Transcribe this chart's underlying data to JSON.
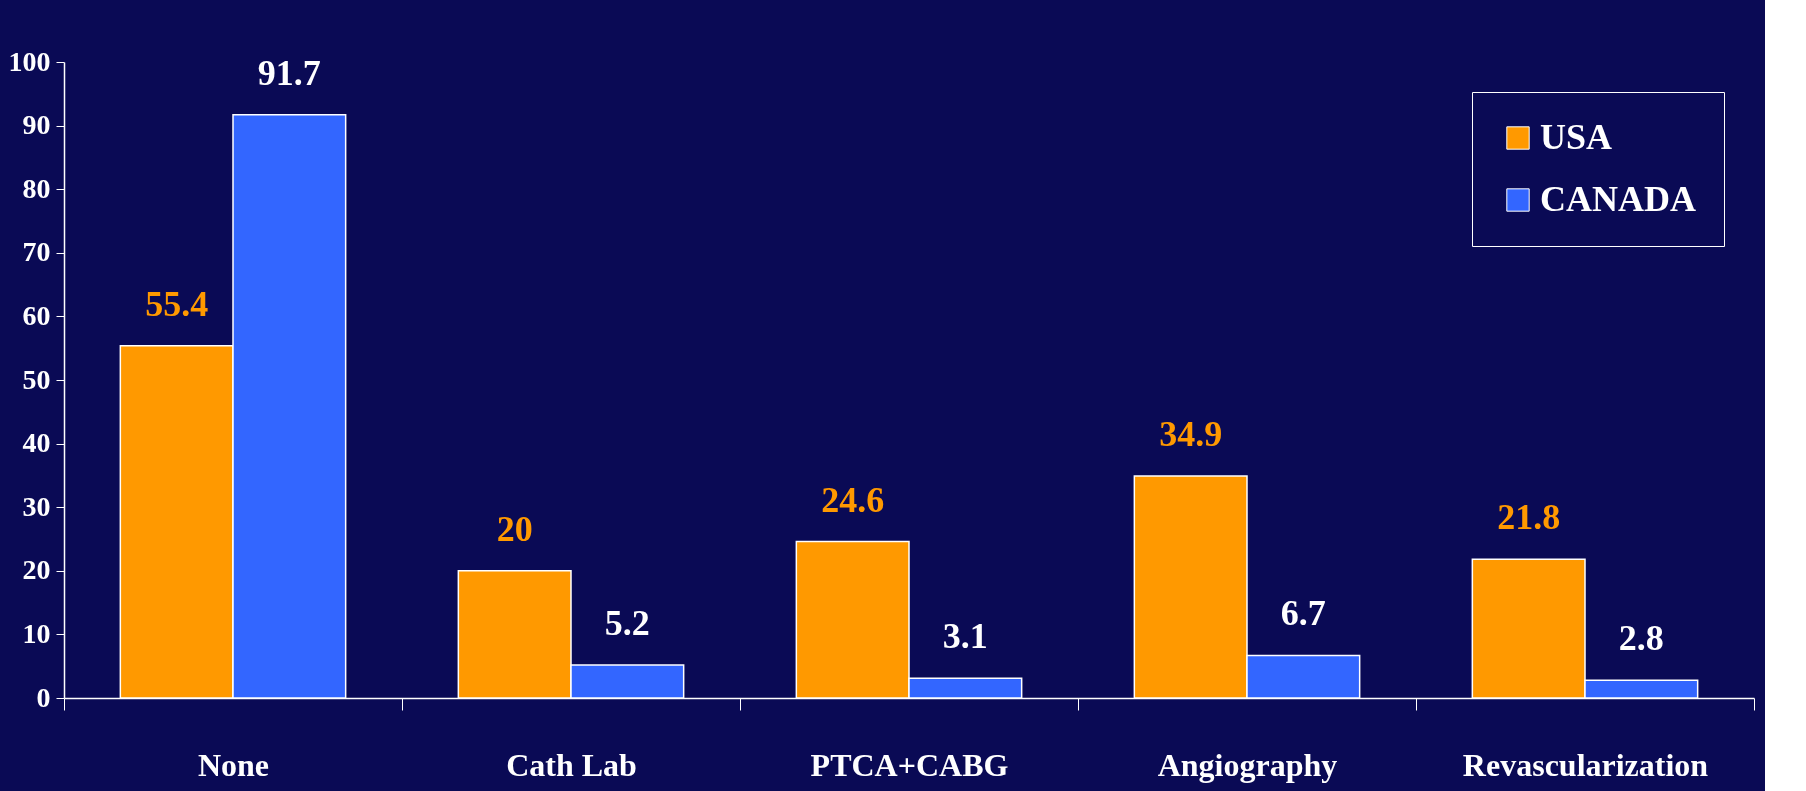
{
  "chart_data": {
    "type": "bar",
    "categories": [
      "None",
      "Cath Lab",
      "PTCA+CABG",
      "Angiography",
      "Revascularization"
    ],
    "series": [
      {
        "name": "USA",
        "color": "#ff9900",
        "values": [
          55.4,
          20,
          24.6,
          34.9,
          21.8
        ]
      },
      {
        "name": "CANADA",
        "color": "#3366ff",
        "values": [
          91.7,
          5.2,
          3.1,
          6.7,
          2.8
        ]
      }
    ],
    "ylim": [
      0,
      100
    ],
    "yticks": [
      0,
      10,
      20,
      30,
      40,
      50,
      60,
      70,
      80,
      90,
      100
    ],
    "data_labels": true,
    "grid": false,
    "legend": "top right"
  }
}
